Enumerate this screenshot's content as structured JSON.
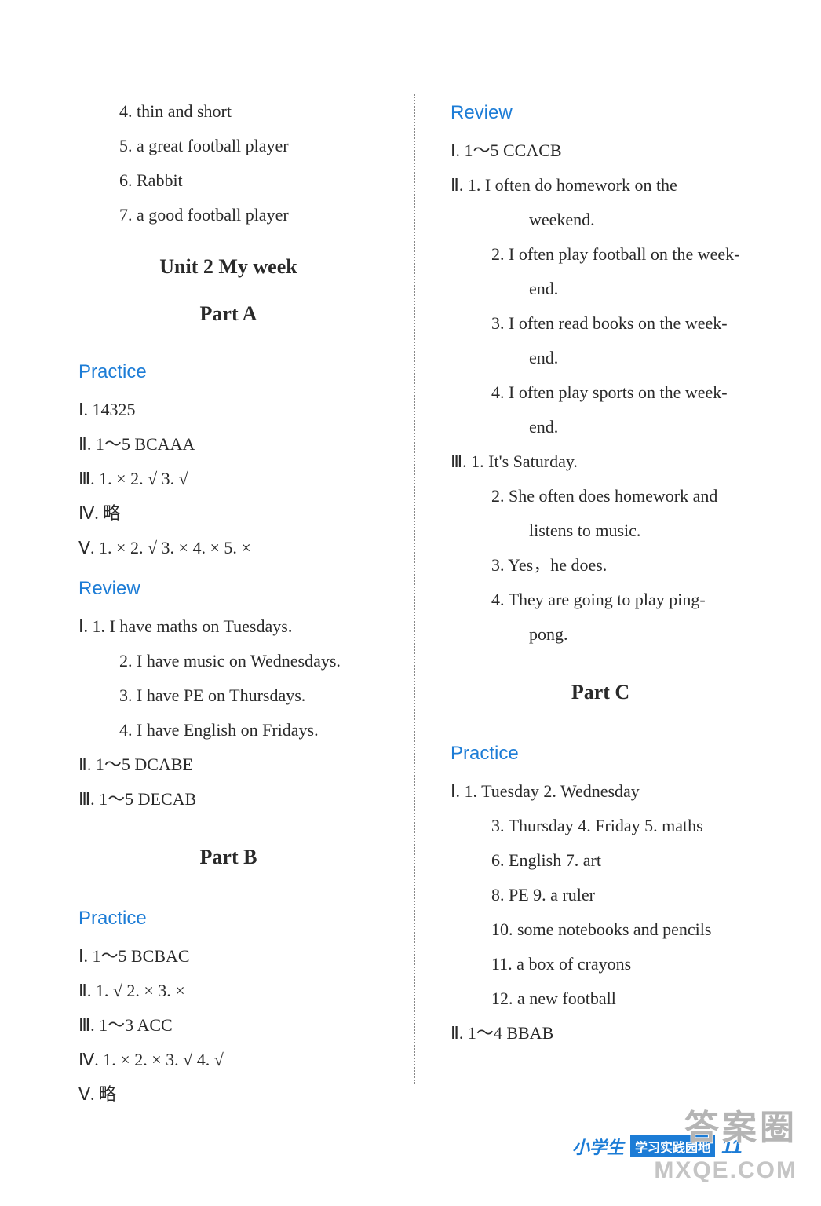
{
  "colors": {
    "text": "#2a2a2a",
    "blue": "#1c7cd6",
    "divider": "#888",
    "background": "#ffffff",
    "watermark": "rgba(120,120,120,0.55)"
  },
  "leftCol": {
    "prefix": {
      "l4": "4. thin and short",
      "l5": "5. a great football player",
      "l6": "6. Rabbit",
      "l7": "7. a good football player"
    },
    "unitTitle": "Unit 2   My week",
    "partA": "Part A",
    "practiceA": {
      "heading": "Practice",
      "i": "Ⅰ. 14325",
      "ii": "Ⅱ. 1～5   BCAAA",
      "iii": "Ⅲ. 1. ×   2. √   3. √",
      "iv": "Ⅳ. 略",
      "v": "Ⅴ. 1. ×   2. √   3. ×   4. ×   5. ×"
    },
    "reviewA": {
      "heading": "Review",
      "i1": "Ⅰ. 1. I have maths on Tuesdays.",
      "i2": "2. I have music on Wednesdays.",
      "i3": "3. I have PE on Thursdays.",
      "i4": "4. I have English on Fridays.",
      "ii": "Ⅱ. 1～5   DCABE",
      "iii": "Ⅲ. 1～5   DECAB"
    },
    "partB": "Part B",
    "practiceB": {
      "heading": "Practice",
      "i": "Ⅰ. 1～5   BCBAC",
      "ii": "Ⅱ. 1. √   2. ×   3. ×",
      "iii": "Ⅲ. 1～3   ACC",
      "iv": "Ⅳ. 1. ×   2. ×   3. √   4. √",
      "v": "Ⅴ. 略"
    }
  },
  "rightCol": {
    "reviewB": {
      "heading": "Review",
      "i": "Ⅰ. 1～5   CCACB",
      "ii1a": "Ⅱ. 1. I  often  do  homework  on  the",
      "ii1b": "weekend.",
      "ii2a": "2. I often play football on the week-",
      "ii2b": "end.",
      "ii3a": "3. I often read books on the week-",
      "ii3b": "end.",
      "ii4a": "4. I often play sports on the week-",
      "ii4b": "end.",
      "iii1": "Ⅲ. 1. It's Saturday.",
      "iii2a": "2. She  often  does  homework  and",
      "iii2b": "listens to music.",
      "iii3": "3. Yes，he does.",
      "iii4a": "4. They  are  going  to  play  ping-",
      "iii4b": "pong."
    },
    "partC": "Part C",
    "practiceC": {
      "heading": "Practice",
      "i1": "Ⅰ. 1. Tuesday   2. Wednesday",
      "i2": "3. Thursday   4. Friday   5. maths",
      "i3": "6. English   7. art",
      "i4": "8. PE   9. a ruler",
      "i5": "10. some notebooks and pencils",
      "i6": "11. a box of crayons",
      "i7": "12. a new football",
      "ii": "Ⅱ. 1～4   BBAB"
    }
  },
  "footer": {
    "brand": "小学生",
    "badge": "学习实践园地",
    "page": "11"
  },
  "watermark": {
    "top": "答案圈",
    "bottom": "MXQE.COM"
  }
}
